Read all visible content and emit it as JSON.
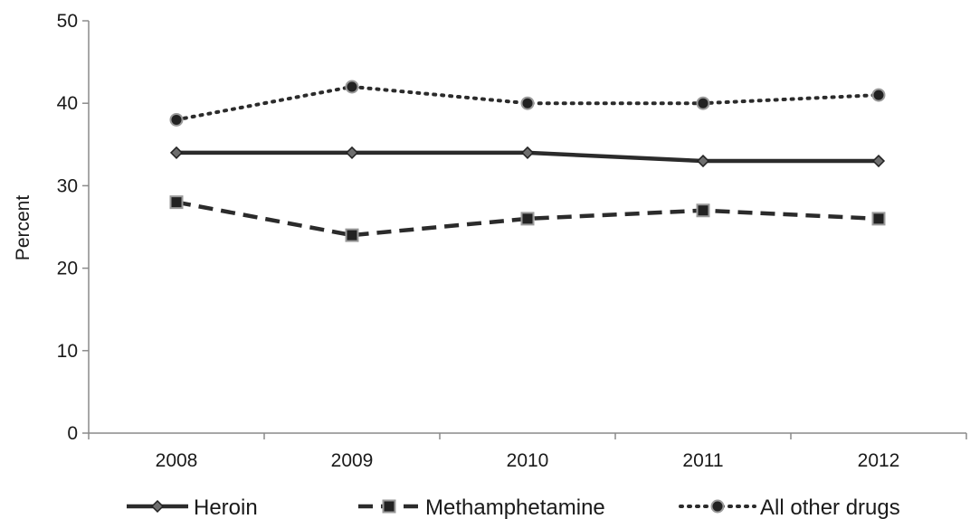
{
  "chart_data": {
    "type": "line",
    "title": "",
    "xlabel": "",
    "ylabel": "Percent",
    "categories": [
      "2008",
      "2009",
      "2010",
      "2011",
      "2012"
    ],
    "ylim": [
      0,
      50
    ],
    "yticks": [
      0,
      10,
      20,
      30,
      40,
      50
    ],
    "grid": false,
    "legend_position": "bottom",
    "series": [
      {
        "name": "Heroin",
        "values": [
          34,
          34,
          34,
          33,
          33
        ],
        "line_style": "solid",
        "marker": "diamond",
        "color": "#2b2b2b"
      },
      {
        "name": "Methamphetamine",
        "values": [
          28,
          24,
          26,
          27,
          26
        ],
        "line_style": "dashed",
        "marker": "square",
        "color": "#2b2b2b"
      },
      {
        "name": "All other drugs",
        "values": [
          38,
          42,
          40,
          40,
          41
        ],
        "line_style": "dotted",
        "marker": "circle",
        "color": "#2b2b2b"
      }
    ]
  }
}
